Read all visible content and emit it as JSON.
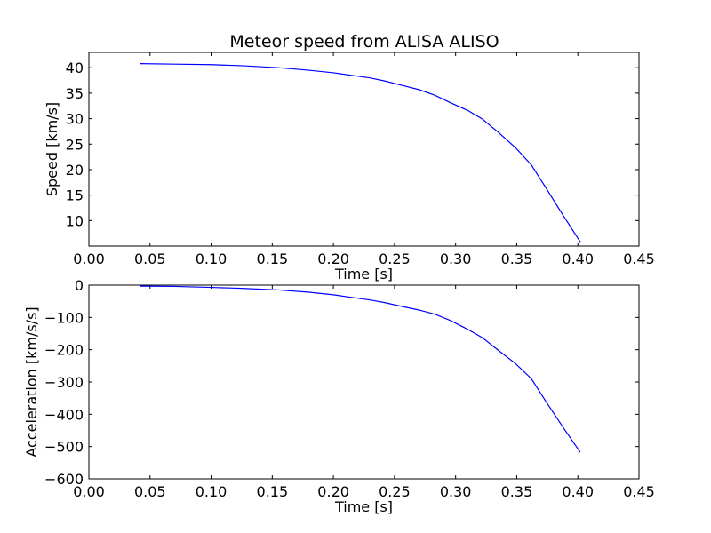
{
  "title": "Meteor speed from  ALISA ALISO",
  "chart_data": [
    {
      "type": "line",
      "xlabel": "Time [s]",
      "ylabel": "Speed [km/s]",
      "xlim": [
        0.0,
        0.45
      ],
      "ylim": [
        5,
        43
      ],
      "x_ticks": [
        "0.00",
        "0.05",
        "0.10",
        "0.15",
        "0.20",
        "0.25",
        "0.30",
        "0.35",
        "0.40",
        "0.45"
      ],
      "y_ticks": [
        "10",
        "15",
        "20",
        "25",
        "30",
        "35",
        "40"
      ],
      "y_tick_values": [
        10,
        15,
        20,
        25,
        30,
        35,
        40
      ],
      "line_color": "#0000ff",
      "series": [
        {
          "x": [
            0.042,
            0.07,
            0.1,
            0.125,
            0.155,
            0.18,
            0.2,
            0.215,
            0.23,
            0.242,
            0.255,
            0.27,
            0.283,
            0.296,
            0.31,
            0.322,
            0.335,
            0.349,
            0.362,
            0.375,
            0.388,
            0.402
          ],
          "y": [
            40.8,
            40.7,
            40.6,
            40.4,
            40.0,
            39.5,
            39.0,
            38.5,
            38.0,
            37.4,
            36.6,
            35.7,
            34.6,
            33.1,
            31.6,
            29.9,
            27.3,
            24.3,
            20.9,
            16.0,
            11.0,
            5.8
          ]
        }
      ]
    },
    {
      "type": "line",
      "xlabel": "Time [s]",
      "ylabel": "Acceleration [km/s/s]",
      "xlim": [
        0.0,
        0.45
      ],
      "ylim": [
        -600,
        0
      ],
      "x_ticks": [
        "0.00",
        "0.05",
        "0.10",
        "0.15",
        "0.20",
        "0.25",
        "0.30",
        "0.35",
        "0.40",
        "0.45"
      ],
      "y_ticks": [
        "0",
        "−100",
        "−200",
        "−300",
        "−400",
        "−500",
        "−600"
      ],
      "y_tick_values": [
        0,
        -100,
        -200,
        -300,
        -400,
        -500,
        -600
      ],
      "line_color": "#0000ff",
      "series": [
        {
          "x": [
            0.042,
            0.07,
            0.1,
            0.125,
            0.155,
            0.18,
            0.2,
            0.215,
            0.23,
            0.242,
            0.255,
            0.27,
            0.283,
            0.296,
            0.31,
            0.322,
            0.335,
            0.349,
            0.362,
            0.375,
            0.388,
            0.402
          ],
          "y": [
            -3,
            -4,
            -7,
            -10,
            -15,
            -22,
            -30,
            -38,
            -46,
            -54,
            -65,
            -77,
            -90,
            -110,
            -137,
            -163,
            -202,
            -243,
            -290,
            -367,
            -441,
            -518
          ]
        }
      ]
    }
  ]
}
